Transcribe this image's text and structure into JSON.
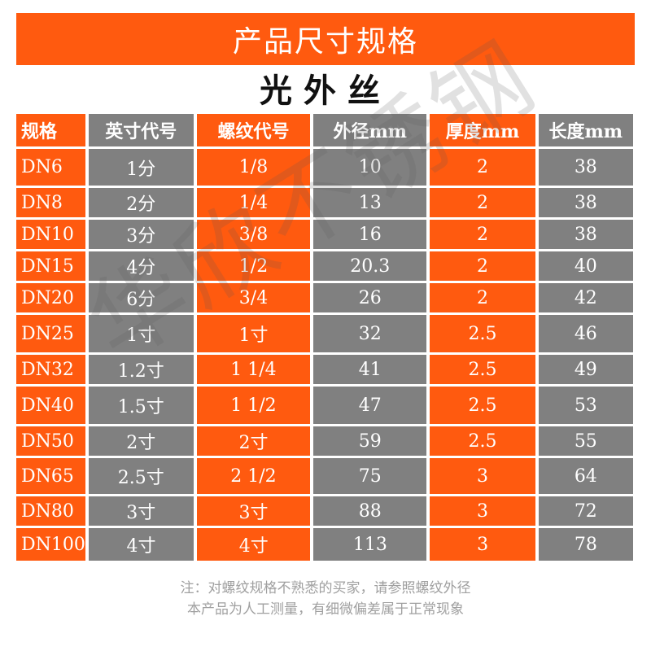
{
  "title": "产品尺寸规格",
  "subtitle": "光外丝",
  "colors": {
    "orange": "#ff5a0f",
    "gray": "#808080"
  },
  "columns": [
    "规格",
    "英寸代号",
    "螺纹代号",
    "外径mm",
    "厚度mm",
    "长度mm"
  ],
  "header_colors": [
    "orange",
    "gray",
    "orange",
    "gray",
    "orange",
    "gray"
  ],
  "rows": [
    [
      "DN6",
      "1分",
      "1/8",
      "10",
      "2",
      "38"
    ],
    [
      "DN8",
      "2分",
      "1/4",
      "13",
      "2",
      "38"
    ],
    [
      "DN10",
      "3分",
      "3/8",
      "16",
      "2",
      "38"
    ],
    [
      "DN15",
      "4分",
      "1/2",
      "20.3",
      "2",
      "40"
    ],
    [
      "DN20",
      "6分",
      "3/4",
      "26",
      "2",
      "42"
    ],
    [
      "DN25",
      "1寸",
      "1寸",
      "32",
      "2.5",
      "46"
    ],
    [
      "DN32",
      "1.2寸",
      "1 1/4",
      "41",
      "2.5",
      "49"
    ],
    [
      "DN40",
      "1.5寸",
      "1 1/2",
      "47",
      "2.5",
      "53"
    ],
    [
      "DN50",
      "2寸",
      "2寸",
      "59",
      "2.5",
      "55"
    ],
    [
      "DN65",
      "2.5寸",
      "2 1/2",
      "75",
      "3",
      "64"
    ],
    [
      "DN80",
      "3寸",
      "3寸",
      "88",
      "3",
      "72"
    ],
    [
      "DN100",
      "4寸",
      "4寸",
      "113",
      "3",
      "78"
    ]
  ],
  "body_colors": [
    "orange",
    "gray",
    "orange",
    "gray",
    "orange",
    "gray"
  ],
  "notes": [
    "注：对螺纹规格不熟悉的买家，请参照螺纹外径",
    "本产品为人工测量，有细微偏差属于正常现象"
  ],
  "watermark": "华欣不锈钢"
}
